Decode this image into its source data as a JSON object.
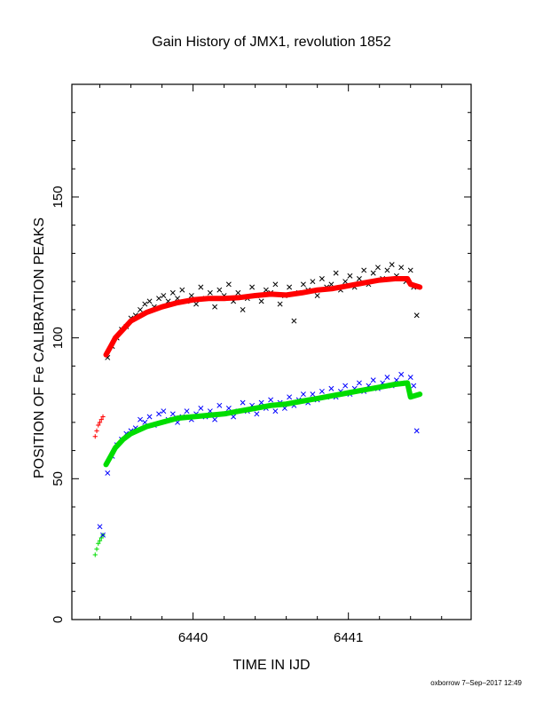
{
  "chart_data": {
    "type": "scatter",
    "title": "Gain History of JMX1, revolution 1852",
    "xlabel": "TIME IN IJD",
    "ylabel": "POSITION OF Fe CALIBRATION PEAKS",
    "footer": "oxborrow  7–Sep–2017 12:49",
    "xlim": [
      6439.22,
      6441.79
    ],
    "ylim": [
      0,
      190
    ],
    "x_ticks": [
      6440,
      6441
    ],
    "x_tick_labels": [
      "6440",
      "6441"
    ],
    "y_ticks": [
      0,
      50,
      100,
      150
    ],
    "y_tick_labels": [
      "0",
      "50",
      "100",
      "150"
    ],
    "grid": false,
    "legend": "none",
    "series": [
      {
        "color": "#000000",
        "marker": "x",
        "points": [
          [
            6439.45,
            93
          ],
          [
            6439.48,
            97
          ],
          [
            6439.51,
            100
          ],
          [
            6439.54,
            103
          ],
          [
            6439.57,
            104
          ],
          [
            6439.6,
            107
          ],
          [
            6439.63,
            108
          ],
          [
            6439.66,
            110
          ],
          [
            6439.69,
            112
          ],
          [
            6439.72,
            113
          ],
          [
            6439.75,
            111
          ],
          [
            6439.78,
            114
          ],
          [
            6439.81,
            115
          ],
          [
            6439.84,
            113
          ],
          [
            6439.87,
            116
          ],
          [
            6439.9,
            114
          ],
          [
            6439.93,
            117
          ],
          [
            6439.96,
            113
          ],
          [
            6439.99,
            115
          ],
          [
            6440.02,
            112
          ],
          [
            6440.05,
            118
          ],
          [
            6440.08,
            114
          ],
          [
            6440.11,
            116
          ],
          [
            6440.14,
            111
          ],
          [
            6440.17,
            117
          ],
          [
            6440.2,
            115
          ],
          [
            6440.23,
            119
          ],
          [
            6440.26,
            113
          ],
          [
            6440.29,
            116
          ],
          [
            6440.32,
            110
          ],
          [
            6440.35,
            114
          ],
          [
            6440.38,
            118
          ],
          [
            6440.41,
            115
          ],
          [
            6440.44,
            113
          ],
          [
            6440.47,
            117
          ],
          [
            6440.5,
            116
          ],
          [
            6440.53,
            119
          ],
          [
            6440.56,
            112
          ],
          [
            6440.59,
            115
          ],
          [
            6440.62,
            118
          ],
          [
            6440.65,
            106
          ],
          [
            6440.68,
            116
          ],
          [
            6440.71,
            119
          ],
          [
            6440.74,
            117
          ],
          [
            6440.77,
            120
          ],
          [
            6440.8,
            115
          ],
          [
            6440.83,
            121
          ],
          [
            6440.86,
            118
          ],
          [
            6440.89,
            119
          ],
          [
            6440.92,
            123
          ],
          [
            6440.95,
            117
          ],
          [
            6440.98,
            120
          ],
          [
            6441.01,
            122
          ],
          [
            6441.04,
            118
          ],
          [
            6441.07,
            121
          ],
          [
            6441.1,
            124
          ],
          [
            6441.13,
            119
          ],
          [
            6441.16,
            123
          ],
          [
            6441.19,
            125
          ],
          [
            6441.22,
            121
          ],
          [
            6441.25,
            124
          ],
          [
            6441.28,
            126
          ],
          [
            6441.31,
            122
          ],
          [
            6441.34,
            125
          ],
          [
            6441.37,
            120
          ],
          [
            6441.4,
            124
          ],
          [
            6441.42,
            118
          ],
          [
            6441.44,
            108
          ]
        ]
      },
      {
        "color": "#ff0000",
        "marker": "curve",
        "points": [
          [
            6439.44,
            94
          ],
          [
            6439.47,
            97
          ],
          [
            6439.5,
            100
          ],
          [
            6439.55,
            103
          ],
          [
            6439.6,
            106
          ],
          [
            6439.7,
            109
          ],
          [
            6439.8,
            111
          ],
          [
            6439.9,
            112.5
          ],
          [
            6440.0,
            113.5
          ],
          [
            6440.1,
            114
          ],
          [
            6440.2,
            114
          ],
          [
            6440.3,
            114.3
          ],
          [
            6440.4,
            115
          ],
          [
            6440.5,
            115.5
          ],
          [
            6440.6,
            115.2
          ],
          [
            6440.7,
            116
          ],
          [
            6440.8,
            117
          ],
          [
            6440.9,
            117.5
          ],
          [
            6441.0,
            118.5
          ],
          [
            6441.1,
            119.5
          ],
          [
            6441.2,
            120.5
          ],
          [
            6441.3,
            121
          ],
          [
            6441.38,
            121
          ],
          [
            6441.4,
            119
          ],
          [
            6441.46,
            118
          ]
        ]
      },
      {
        "color": "#ff0000",
        "marker": "+",
        "points": [
          [
            6439.37,
            65
          ],
          [
            6439.38,
            67
          ],
          [
            6439.39,
            69
          ],
          [
            6439.4,
            70
          ],
          [
            6439.41,
            71
          ],
          [
            6439.42,
            72
          ]
        ]
      },
      {
        "color": "#0000ff",
        "marker": "x",
        "points": [
          [
            6439.45,
            52
          ],
          [
            6439.48,
            58
          ],
          [
            6439.51,
            62
          ],
          [
            6439.54,
            64
          ],
          [
            6439.57,
            66
          ],
          [
            6439.6,
            67
          ],
          [
            6439.63,
            68
          ],
          [
            6439.66,
            71
          ],
          [
            6439.69,
            70
          ],
          [
            6439.72,
            72
          ],
          [
            6439.75,
            69
          ],
          [
            6439.78,
            73
          ],
          [
            6439.81,
            74
          ],
          [
            6439.84,
            71
          ],
          [
            6439.87,
            73
          ],
          [
            6439.9,
            70
          ],
          [
            6439.93,
            72
          ],
          [
            6439.96,
            74
          ],
          [
            6439.99,
            71
          ],
          [
            6440.02,
            73
          ],
          [
            6440.05,
            75
          ],
          [
            6440.08,
            72
          ],
          [
            6440.11,
            74
          ],
          [
            6440.14,
            71
          ],
          [
            6440.17,
            76
          ],
          [
            6440.2,
            73
          ],
          [
            6440.23,
            75
          ],
          [
            6440.26,
            72
          ],
          [
            6440.29,
            74
          ],
          [
            6440.32,
            77
          ],
          [
            6440.35,
            74
          ],
          [
            6440.38,
            76
          ],
          [
            6440.41,
            73
          ],
          [
            6440.44,
            77
          ],
          [
            6440.47,
            75
          ],
          [
            6440.5,
            78
          ],
          [
            6440.53,
            74
          ],
          [
            6440.56,
            77
          ],
          [
            6440.59,
            75
          ],
          [
            6440.62,
            79
          ],
          [
            6440.65,
            76
          ],
          [
            6440.68,
            78
          ],
          [
            6440.71,
            80
          ],
          [
            6440.74,
            77
          ],
          [
            6440.77,
            80
          ],
          [
            6440.8,
            78
          ],
          [
            6440.83,
            81
          ],
          [
            6440.86,
            79
          ],
          [
            6440.89,
            82
          ],
          [
            6440.92,
            79
          ],
          [
            6440.95,
            81
          ],
          [
            6440.98,
            83
          ],
          [
            6441.01,
            80
          ],
          [
            6441.04,
            82
          ],
          [
            6441.07,
            84
          ],
          [
            6441.1,
            81
          ],
          [
            6441.13,
            83
          ],
          [
            6441.16,
            85
          ],
          [
            6441.19,
            82
          ],
          [
            6441.22,
            84
          ],
          [
            6441.25,
            86
          ],
          [
            6441.28,
            83
          ],
          [
            6441.31,
            85
          ],
          [
            6441.34,
            87
          ],
          [
            6441.37,
            84
          ],
          [
            6441.4,
            86
          ],
          [
            6441.42,
            83
          ],
          [
            6441.44,
            67
          ]
        ]
      },
      {
        "color": "#00dd00",
        "marker": "curve",
        "points": [
          [
            6439.44,
            55
          ],
          [
            6439.47,
            58
          ],
          [
            6439.5,
            61
          ],
          [
            6439.55,
            64
          ],
          [
            6439.6,
            66
          ],
          [
            6439.7,
            68.5
          ],
          [
            6439.8,
            70
          ],
          [
            6439.9,
            71.5
          ],
          [
            6440.0,
            72
          ],
          [
            6440.1,
            72.5
          ],
          [
            6440.2,
            73
          ],
          [
            6440.3,
            74
          ],
          [
            6440.4,
            75
          ],
          [
            6440.5,
            76
          ],
          [
            6440.6,
            76.5
          ],
          [
            6440.7,
            77.5
          ],
          [
            6440.8,
            78.5
          ],
          [
            6440.9,
            79.5
          ],
          [
            6441.0,
            80.5
          ],
          [
            6441.1,
            81.5
          ],
          [
            6441.2,
            82.5
          ],
          [
            6441.3,
            83.5
          ],
          [
            6441.38,
            84
          ],
          [
            6441.4,
            79
          ],
          [
            6441.46,
            80
          ]
        ]
      },
      {
        "color": "#00dd00",
        "marker": "+",
        "points": [
          [
            6439.37,
            23
          ],
          [
            6439.38,
            25
          ],
          [
            6439.39,
            27
          ],
          [
            6439.4,
            28
          ],
          [
            6439.41,
            29
          ],
          [
            6439.42,
            30
          ]
        ]
      },
      {
        "color": "#0000ff",
        "marker": "x",
        "points": [
          [
            6439.4,
            33
          ],
          [
            6439.42,
            30
          ]
        ]
      }
    ]
  }
}
